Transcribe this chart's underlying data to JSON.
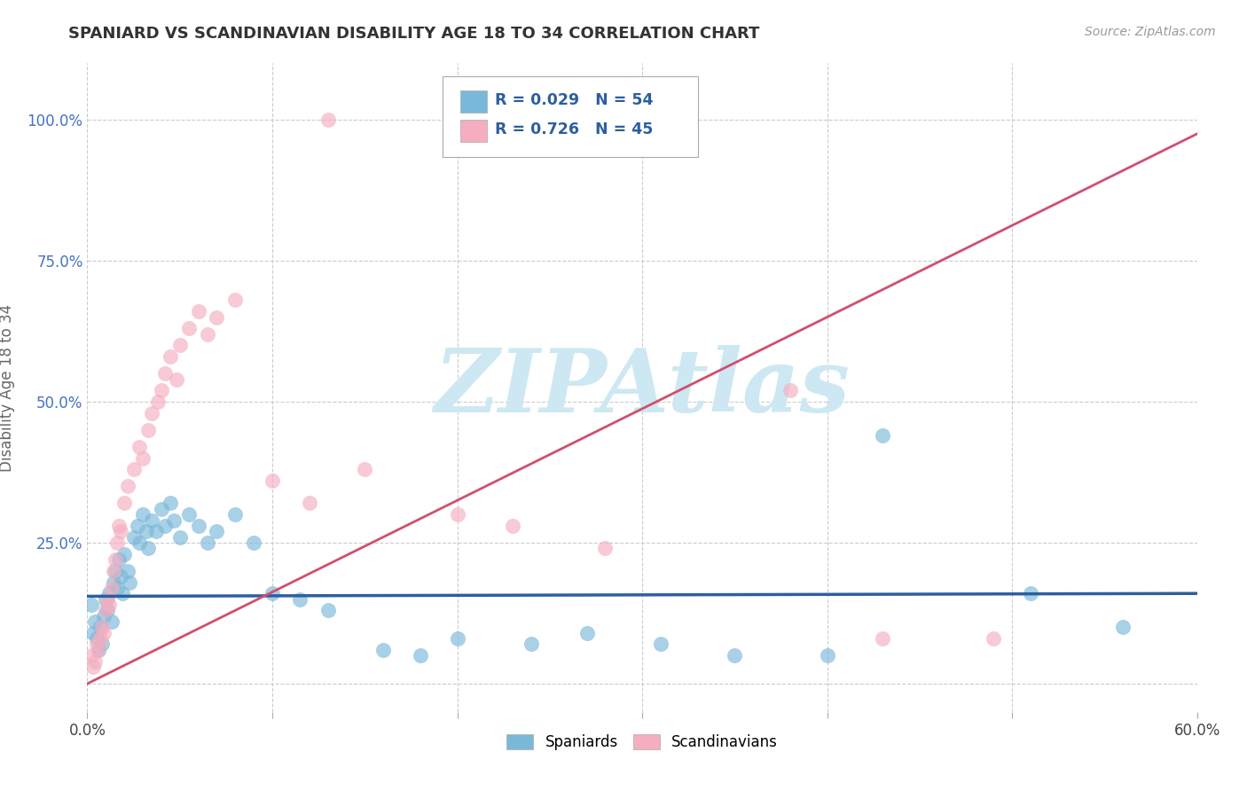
{
  "title": "SPANIARD VS SCANDINAVIAN DISABILITY AGE 18 TO 34 CORRELATION CHART",
  "source": "Source: ZipAtlas.com",
  "ylabel": "Disability Age 18 to 34",
  "xlim": [
    0.0,
    0.6
  ],
  "ylim": [
    -0.05,
    1.1
  ],
  "xticks": [
    0.0,
    0.1,
    0.2,
    0.3,
    0.4,
    0.5,
    0.6
  ],
  "xticklabels": [
    "0.0%",
    "",
    "",
    "",
    "",
    "",
    "60.0%"
  ],
  "yticks": [
    0.0,
    0.25,
    0.5,
    0.75,
    1.0
  ],
  "yticklabels": [
    "",
    "25.0%",
    "50.0%",
    "75.0%",
    "100.0%"
  ],
  "watermark_text": "ZIPAtlas",
  "blue_color": "#7ab8d9",
  "pink_color": "#f4aec0",
  "blue_line_color": "#2c5f9e",
  "pink_line_color": "#d14f6e",
  "blue_R": 0.029,
  "blue_N": 54,
  "pink_R": 0.726,
  "pink_N": 45,
  "spaniards_label": "Spaniards",
  "scandinavians_label": "Scandinavians",
  "grid_color": "#cccccc",
  "background_color": "#ffffff",
  "watermark_color": "#cde8f2",
  "tick_color": "#4472c4",
  "blue_scatter": [
    [
      0.002,
      0.14
    ],
    [
      0.003,
      0.09
    ],
    [
      0.004,
      0.11
    ],
    [
      0.005,
      0.08
    ],
    [
      0.006,
      0.06
    ],
    [
      0.007,
      0.1
    ],
    [
      0.008,
      0.07
    ],
    [
      0.009,
      0.12
    ],
    [
      0.01,
      0.15
    ],
    [
      0.011,
      0.13
    ],
    [
      0.012,
      0.16
    ],
    [
      0.013,
      0.11
    ],
    [
      0.014,
      0.18
    ],
    [
      0.015,
      0.2
    ],
    [
      0.016,
      0.17
    ],
    [
      0.017,
      0.22
    ],
    [
      0.018,
      0.19
    ],
    [
      0.019,
      0.16
    ],
    [
      0.02,
      0.23
    ],
    [
      0.022,
      0.2
    ],
    [
      0.023,
      0.18
    ],
    [
      0.025,
      0.26
    ],
    [
      0.027,
      0.28
    ],
    [
      0.028,
      0.25
    ],
    [
      0.03,
      0.3
    ],
    [
      0.032,
      0.27
    ],
    [
      0.033,
      0.24
    ],
    [
      0.035,
      0.29
    ],
    [
      0.037,
      0.27
    ],
    [
      0.04,
      0.31
    ],
    [
      0.042,
      0.28
    ],
    [
      0.045,
      0.32
    ],
    [
      0.047,
      0.29
    ],
    [
      0.05,
      0.26
    ],
    [
      0.055,
      0.3
    ],
    [
      0.06,
      0.28
    ],
    [
      0.065,
      0.25
    ],
    [
      0.07,
      0.27
    ],
    [
      0.08,
      0.3
    ],
    [
      0.09,
      0.25
    ],
    [
      0.1,
      0.16
    ],
    [
      0.115,
      0.15
    ],
    [
      0.13,
      0.13
    ],
    [
      0.16,
      0.06
    ],
    [
      0.18,
      0.05
    ],
    [
      0.2,
      0.08
    ],
    [
      0.24,
      0.07
    ],
    [
      0.27,
      0.09
    ],
    [
      0.31,
      0.07
    ],
    [
      0.35,
      0.05
    ],
    [
      0.4,
      0.05
    ],
    [
      0.43,
      0.44
    ],
    [
      0.51,
      0.16
    ],
    [
      0.56,
      0.1
    ]
  ],
  "pink_scatter": [
    [
      0.002,
      0.05
    ],
    [
      0.003,
      0.03
    ],
    [
      0.004,
      0.04
    ],
    [
      0.005,
      0.07
    ],
    [
      0.006,
      0.06
    ],
    [
      0.007,
      0.08
    ],
    [
      0.008,
      0.1
    ],
    [
      0.009,
      0.09
    ],
    [
      0.01,
      0.13
    ],
    [
      0.011,
      0.15
    ],
    [
      0.012,
      0.14
    ],
    [
      0.013,
      0.17
    ],
    [
      0.014,
      0.2
    ],
    [
      0.015,
      0.22
    ],
    [
      0.016,
      0.25
    ],
    [
      0.017,
      0.28
    ],
    [
      0.018,
      0.27
    ],
    [
      0.02,
      0.32
    ],
    [
      0.022,
      0.35
    ],
    [
      0.025,
      0.38
    ],
    [
      0.028,
      0.42
    ],
    [
      0.03,
      0.4
    ],
    [
      0.033,
      0.45
    ],
    [
      0.035,
      0.48
    ],
    [
      0.038,
      0.5
    ],
    [
      0.04,
      0.52
    ],
    [
      0.042,
      0.55
    ],
    [
      0.045,
      0.58
    ],
    [
      0.048,
      0.54
    ],
    [
      0.05,
      0.6
    ],
    [
      0.055,
      0.63
    ],
    [
      0.06,
      0.66
    ],
    [
      0.065,
      0.62
    ],
    [
      0.07,
      0.65
    ],
    [
      0.08,
      0.68
    ],
    [
      0.1,
      0.36
    ],
    [
      0.12,
      0.32
    ],
    [
      0.15,
      0.38
    ],
    [
      0.2,
      0.3
    ],
    [
      0.23,
      0.28
    ],
    [
      0.28,
      0.24
    ],
    [
      0.38,
      0.52
    ],
    [
      0.43,
      0.08
    ],
    [
      0.13,
      1.0
    ],
    [
      0.49,
      0.08
    ]
  ],
  "blue_line": [
    0.0,
    0.6
  ],
  "blue_line_y": [
    0.155,
    0.16
  ],
  "pink_line": [
    0.0,
    0.6
  ],
  "pink_line_y": [
    0.0,
    0.975
  ]
}
